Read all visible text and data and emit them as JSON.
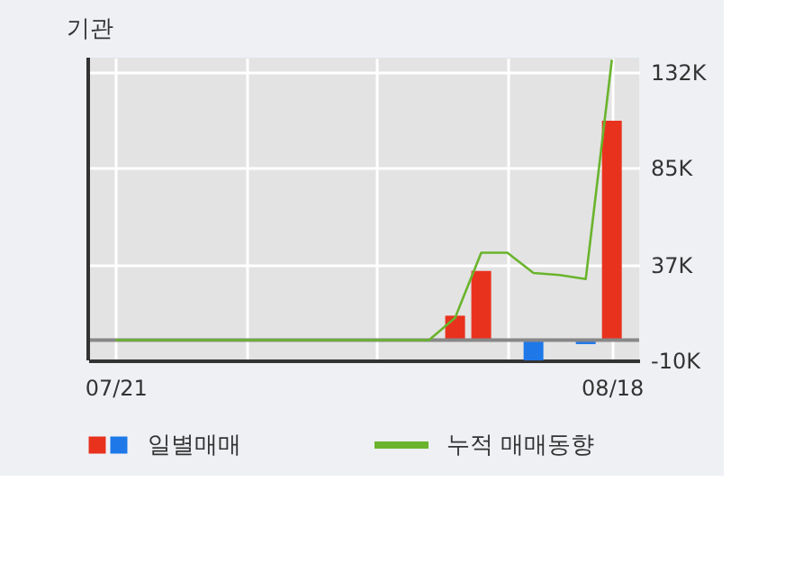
{
  "chart_data": {
    "type": "bar",
    "title": "기관",
    "categories": [
      "07/21",
      null,
      null,
      null,
      null,
      null,
      null,
      null,
      null,
      null,
      null,
      null,
      null,
      null,
      null,
      null,
      null,
      null,
      null,
      "08/18"
    ],
    "series": [
      {
        "name": "일별매매",
        "values": [
          0,
          0,
          0,
          0,
          0,
          0,
          0,
          0,
          0,
          0,
          0,
          0,
          0,
          12,
          34,
          0,
          -10,
          0,
          -2,
          108
        ],
        "colors": [
          "#e8321e",
          "#e8321e",
          "#e8321e",
          "#e8321e",
          "#e8321e",
          "#e8321e",
          "#e8321e",
          "#e8321e",
          "#e8321e",
          "#e8321e",
          "#e8321e",
          "#e8321e",
          "#e8321e",
          "#e8321e",
          "#e8321e",
          "#e8321e",
          "#1e78e8",
          "#e8321e",
          "#1e78e8",
          "#e8321e"
        ]
      },
      {
        "name": "누적 매매동향",
        "type": "line",
        "color": "#6ab42d",
        "values": [
          0,
          0,
          0,
          0,
          0,
          0,
          0,
          0,
          0,
          0,
          0,
          0,
          0,
          11,
          43,
          43,
          33,
          32,
          30,
          138
        ]
      }
    ],
    "ylim": [
      -10,
      139
    ],
    "yticks": [
      {
        "value": 132,
        "label": "132K"
      },
      {
        "value": 85,
        "label": "85K"
      },
      {
        "value": 37,
        "label": "37K"
      },
      {
        "value": -10,
        "label": "-10K"
      }
    ],
    "ref_lines": [
      {
        "axis": "y",
        "value": 0,
        "color": "#888888"
      }
    ],
    "grid": true,
    "legend": "bottom"
  }
}
